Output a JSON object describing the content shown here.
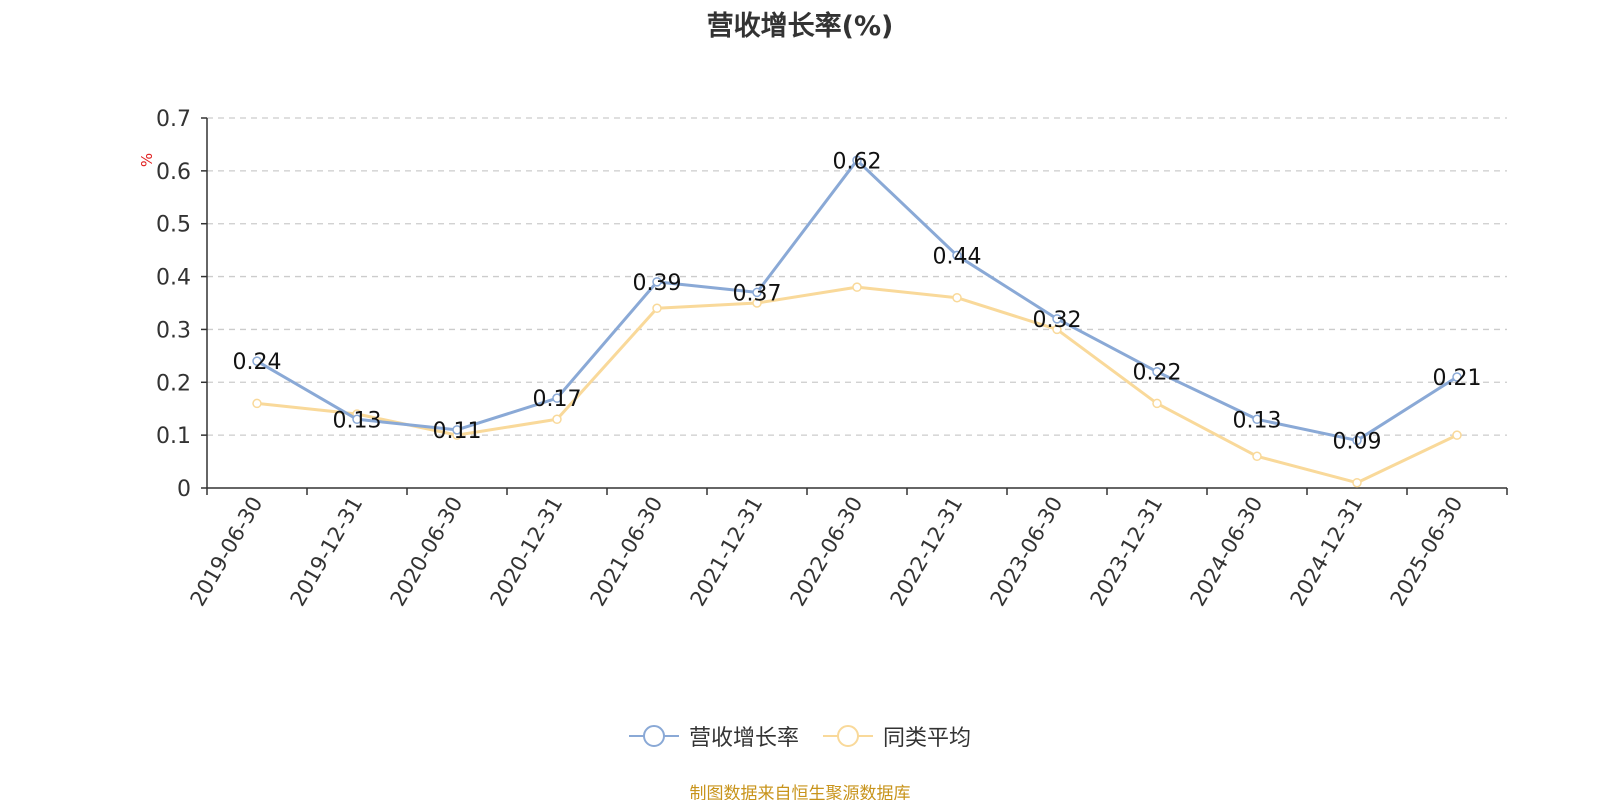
{
  "chart_data": {
    "type": "line",
    "title": "营收增长率(%)",
    "ylabel": "%",
    "xlabel": "",
    "ylim": [
      0,
      0.7
    ],
    "yticks": [
      0,
      0.1,
      0.2,
      0.3,
      0.4,
      0.5,
      0.6,
      0.7
    ],
    "grid": true,
    "legend_position": "bottom",
    "categories": [
      "2019-06-30",
      "2019-12-31",
      "2020-06-30",
      "2020-12-31",
      "2021-06-30",
      "2021-12-31",
      "2022-06-30",
      "2022-12-31",
      "2023-06-30",
      "2023-12-31",
      "2024-06-30",
      "2024-12-31",
      "2025-06-30"
    ],
    "series": [
      {
        "name": "营收增长率",
        "color": "#8aa9d6",
        "show_labels": true,
        "values": [
          0.24,
          0.13,
          0.11,
          0.17,
          0.39,
          0.37,
          0.62,
          0.44,
          0.32,
          0.22,
          0.13,
          0.09,
          0.21
        ]
      },
      {
        "name": "同类平均",
        "color": "#f9d99a",
        "show_labels": false,
        "values": [
          0.16,
          0.14,
          0.1,
          0.13,
          0.34,
          0.35,
          0.38,
          0.36,
          0.3,
          0.16,
          0.06,
          0.01,
          0.1
        ]
      }
    ]
  },
  "footer": {
    "source": "制图数据来自恒生聚源数据库"
  },
  "colors": {
    "ylabel": "#e02020",
    "axis": "#333333",
    "grid": "#cccccc",
    "source": "#c8941c"
  }
}
